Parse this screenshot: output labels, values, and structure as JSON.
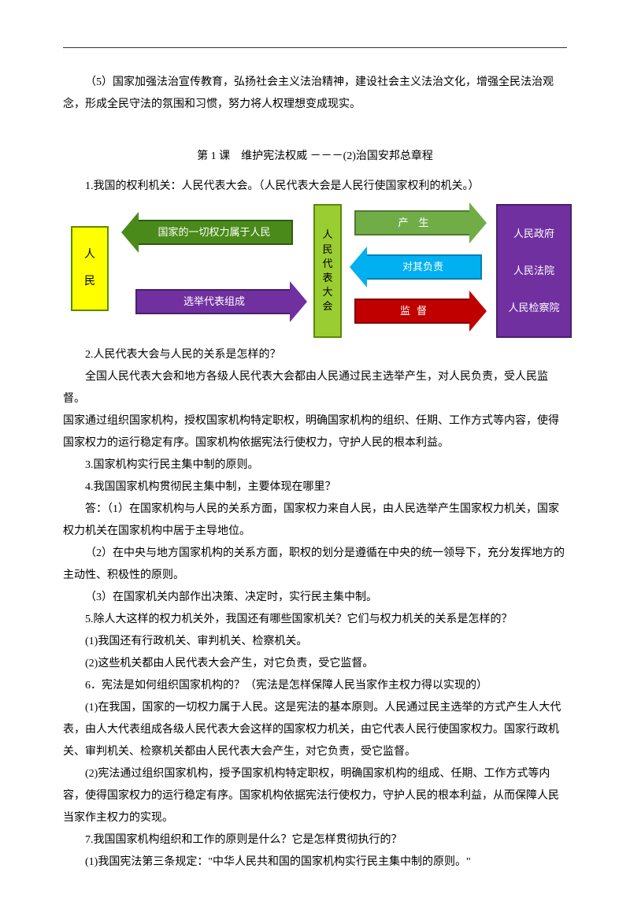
{
  "para1": "（5）国家加强法治宣传教育，弘扬社会主义法治精神，建设社会主义法治文化，增强全民法治观念，形成全民守法的氛围和习惯，努力将人权理想变成现实。",
  "sectionTitle": "第 1 课　维护宪法权威 －－－(2)治国安邦总章程",
  "q1": "1.我国的权利机关：人民代表大会。（人民代表大会是人民行使国家权利的机关。）",
  "diagram": {
    "left": {
      "l1": "人",
      "l2": "民"
    },
    "center": {
      "c1": "人",
      "c2": "民",
      "c3": "代",
      "c4": "表",
      "c5": "大",
      "c6": "会"
    },
    "right": {
      "r1": "人民政府",
      "r2": "人民法院",
      "r3": "人民检察院"
    },
    "a1": "国家的一切权力属于人民",
    "a2": "选举代表组成",
    "a3": "产　生",
    "a4": "对其负责",
    "a5": "监督"
  },
  "q2": "2.人民代表大会与人民的关系是怎样的？",
  "p2a": "全国人民代表大会和地方各级人民代表大会都由人民通过民主选举产生，对人民负责，受人民监督。",
  "p2b": "国家通过组织国家机构，授权国家机构特定职权，明确国家机构的组织、任期、工作方式等内容，使得国家权力的运行稳定有序。国家机构依据宪法行使权力，守护人民的根本利益。",
  "q3": "3.国家机构实行民主集中制的原则。",
  "q4": "4.我国国家机构贯彻民主集中制，主要体现在哪里？",
  "p4a": "答：（1）在国家机构与人民的关系方面，国家权力来自人民，由人民选举产生国家权力机关，国家权力机关在国家机构中居于主导地位。",
  "p4b": "（2）在中央与地方国家机构的关系方面，职权的划分是遵循在中央的统一领导下，充分发挥地方的主动性、积极性的原则。",
  "p4c": "（3）在国家机关内部作出决策、决定时，实行民主集中制。",
  "q5": " 5.除人大这样的权力机关外，我国还有哪些国家机关？它们与权力机关的关系是怎样的？",
  "p5a": "(1)我国还有行政机关、审判机关、检察机关。",
  "p5b": "(2)这些机关都由人民代表大会产生，对它负责，受它监督。",
  "q6": " 6．宪法是如何组织国家机构的？（宪法是怎样保障人民当家作主权力得以实现的）",
  "p6a": "(1)在我国，国家的一切权力属于人民。这是宪法的基本原则。人民通过民主选举的方式产生人大代表，由人大代表组成各级人民代表大会这样的国家权力机关，由它代表人民行使国家权力。国家行政机关、审判机关、检察机关都由人民代表大会产生，对它负责，受它监督。",
  "p6b": "(2)宪法通过组织国家机构，授予国家机构特定职权，明确国家机构的组成、任期、工作方式等内容，使得国家权力的运行稳定有序。国家机构依据宪法行使权力，守护人民的根本利益，从而保障人民当家作主权力的实现。",
  "q7": "7.我国国家机构组织和工作的原则是什么？它是怎样贯彻执行的？",
  "p7a": "(1)我国宪法第三条规定：\"中华人民共和国的国家机构实行民主集中制的原则。\""
}
